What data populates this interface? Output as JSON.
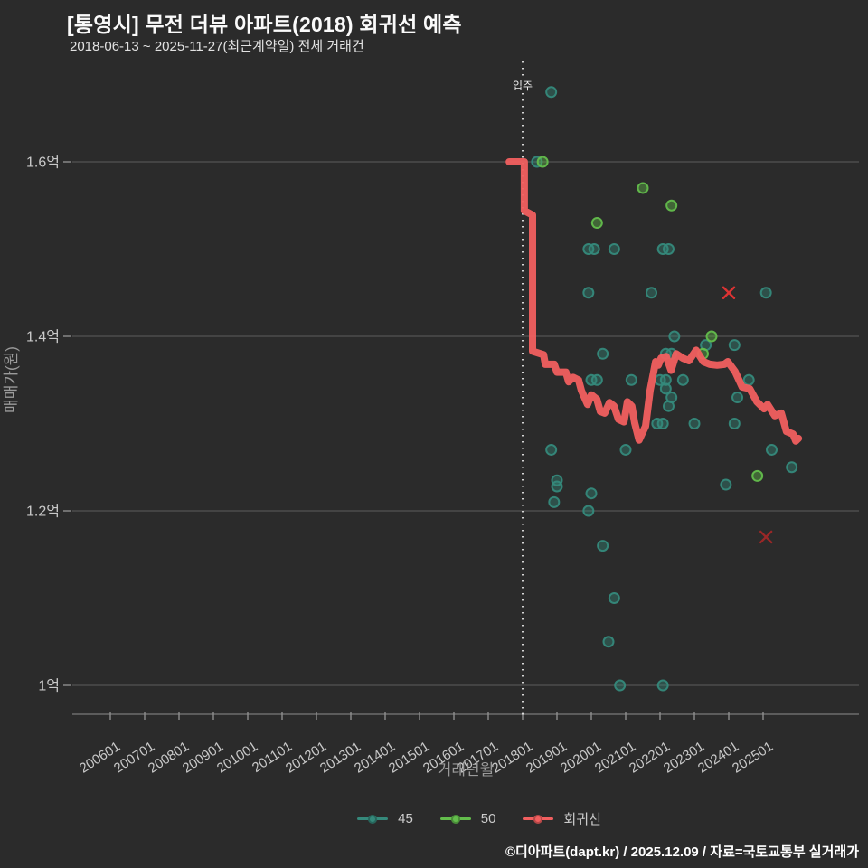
{
  "header": {
    "title": "[통영시] 무전 더뷰 아파트(2018) 회귀선 예측",
    "subtitle": "2018-06-13 ~ 2025-11-27(최근계약일) 전체 거래건"
  },
  "footer": {
    "text": "©디아파트(dapt.kr) / 2025.12.09 / 자료=국토교통부 실거래가"
  },
  "legend": {
    "position": "bottom",
    "items": [
      {
        "label": "45",
        "color": "#35897b"
      },
      {
        "label": "50",
        "color": "#63bd4c"
      },
      {
        "label": "회귀선",
        "color": "#f15f5f"
      }
    ]
  },
  "annotation": {
    "label": "입주",
    "x": 201801
  },
  "colors": {
    "background": "#2b2b2b",
    "gridline": "#5e5e5e",
    "axis_line": "#7a7a7a",
    "tick": "#8f8f8f",
    "tick_label": "#c9c9c9",
    "axis_title": "#9a9a9a",
    "annotation_line": "#e8e8e8",
    "series_45": "#35897b",
    "series_50": "#63bd4c",
    "regression": "#f15f5f",
    "outlier_1": "#dd3333",
    "outlier_2": "#9a2727"
  },
  "chart_data": {
    "type": "scatter",
    "title": "[통영시] 무전 더뷰 아파트(2018) 회귀선 예측",
    "xlabel": "거래년월",
    "ylabel": "매매가(원)",
    "grid": true,
    "legend_position": "bottom",
    "xlim": [
      2005.0,
      2027.7
    ],
    "ylim": [
      0.97,
      1.72
    ],
    "x_ticks": [
      "200601",
      "200701",
      "200801",
      "200901",
      "201001",
      "201101",
      "201201",
      "201301",
      "201401",
      "201501",
      "201601",
      "201701",
      "201801",
      "201901",
      "202001",
      "202101",
      "202201",
      "202301",
      "202401",
      "202501"
    ],
    "y_ticks": [
      {
        "label": "1.6억",
        "value": 1.6
      },
      {
        "label": "1.4억",
        "value": 1.4
      },
      {
        "label": "1.2억",
        "value": 1.2
      },
      {
        "label": "1억",
        "value": 1.0
      }
    ],
    "series": [
      {
        "name": "45",
        "color": "#35897b",
        "points": [
          [
            201811,
            1.68
          ],
          [
            201806,
            1.6
          ],
          [
            201912,
            1.5
          ],
          [
            202002,
            1.5
          ],
          [
            202009,
            1.5
          ],
          [
            202202,
            1.5
          ],
          [
            202204,
            1.5
          ],
          [
            201912,
            1.45
          ],
          [
            202110,
            1.45
          ],
          [
            202502,
            1.45
          ],
          [
            202206,
            1.4
          ],
          [
            202305,
            1.39
          ],
          [
            202403,
            1.39
          ],
          [
            202005,
            1.38
          ],
          [
            202203,
            1.38
          ],
          [
            202205,
            1.38
          ],
          [
            202201,
            1.35
          ],
          [
            202203,
            1.35
          ],
          [
            202209,
            1.35
          ],
          [
            202408,
            1.35
          ],
          [
            202001,
            1.35
          ],
          [
            202003,
            1.35
          ],
          [
            202103,
            1.35
          ],
          [
            202203,
            1.34
          ],
          [
            202205,
            1.33
          ],
          [
            202404,
            1.33
          ],
          [
            202204,
            1.32
          ],
          [
            202112,
            1.3
          ],
          [
            202202,
            1.3
          ],
          [
            202301,
            1.3
          ],
          [
            202403,
            1.3
          ],
          [
            201811,
            1.27
          ],
          [
            202101,
            1.27
          ],
          [
            202504,
            1.27
          ],
          [
            202511,
            1.25
          ],
          [
            201901,
            1.235
          ],
          [
            201901,
            1.228
          ],
          [
            202312,
            1.23
          ],
          [
            202001,
            1.22
          ],
          [
            201812,
            1.21
          ],
          [
            201912,
            1.2
          ],
          [
            202005,
            1.16
          ],
          [
            202009,
            1.1
          ],
          [
            202007,
            1.05
          ],
          [
            202011,
            1.0
          ],
          [
            202202,
            1.0
          ]
        ]
      },
      {
        "name": "50",
        "color": "#63bd4c",
        "points": [
          [
            201808,
            1.6
          ],
          [
            202003,
            1.53
          ],
          [
            202107,
            1.57
          ],
          [
            202205,
            1.55
          ],
          [
            202307,
            1.4
          ],
          [
            202304,
            1.38
          ],
          [
            202411,
            1.24
          ]
        ]
      }
    ],
    "regression": {
      "name": "회귀선",
      "color": "#f15f5f",
      "points": [
        [
          2017.61,
          1.6
        ],
        [
          2018.05,
          1.6
        ],
        [
          2018.05,
          1.544
        ],
        [
          2018.29,
          1.539
        ],
        [
          2018.29,
          1.383
        ],
        [
          2018.61,
          1.379
        ],
        [
          2018.66,
          1.368
        ],
        [
          2018.92,
          1.368
        ],
        [
          2019.0,
          1.359
        ],
        [
          2019.26,
          1.359
        ],
        [
          2019.34,
          1.348
        ],
        [
          2019.47,
          1.353
        ],
        [
          2019.63,
          1.35
        ],
        [
          2019.71,
          1.338
        ],
        [
          2019.89,
          1.322
        ],
        [
          2020.0,
          1.333
        ],
        [
          2020.16,
          1.328
        ],
        [
          2020.26,
          1.314
        ],
        [
          2020.39,
          1.312
        ],
        [
          2020.53,
          1.324
        ],
        [
          2020.66,
          1.32
        ],
        [
          2020.79,
          1.305
        ],
        [
          2020.95,
          1.302
        ],
        [
          2021.05,
          1.325
        ],
        [
          2021.18,
          1.32
        ],
        [
          2021.26,
          1.301
        ],
        [
          2021.39,
          1.281
        ],
        [
          2021.47,
          1.288
        ],
        [
          2021.58,
          1.297
        ],
        [
          2021.71,
          1.338
        ],
        [
          2021.87,
          1.371
        ],
        [
          2021.95,
          1.367
        ],
        [
          2022.03,
          1.375
        ],
        [
          2022.18,
          1.377
        ],
        [
          2022.32,
          1.361
        ],
        [
          2022.47,
          1.38
        ],
        [
          2022.66,
          1.375
        ],
        [
          2022.84,
          1.372
        ],
        [
          2023.05,
          1.384
        ],
        [
          2023.26,
          1.371
        ],
        [
          2023.45,
          1.368
        ],
        [
          2023.66,
          1.367
        ],
        [
          2023.87,
          1.368
        ],
        [
          2023.97,
          1.371
        ],
        [
          2024.18,
          1.36
        ],
        [
          2024.39,
          1.342
        ],
        [
          2024.61,
          1.34
        ],
        [
          2024.82,
          1.325
        ],
        [
          2025.03,
          1.317
        ],
        [
          2025.13,
          1.322
        ],
        [
          2025.34,
          1.309
        ],
        [
          2025.53,
          1.312
        ],
        [
          2025.68,
          1.291
        ],
        [
          2025.87,
          1.288
        ],
        [
          2025.95,
          1.28
        ],
        [
          2026.03,
          1.283
        ]
      ]
    },
    "outliers": [
      {
        "x": 202401,
        "y": 1.45,
        "color": "#dd3333"
      },
      {
        "x": 202502,
        "y": 1.17,
        "color": "#9a2727"
      }
    ]
  }
}
